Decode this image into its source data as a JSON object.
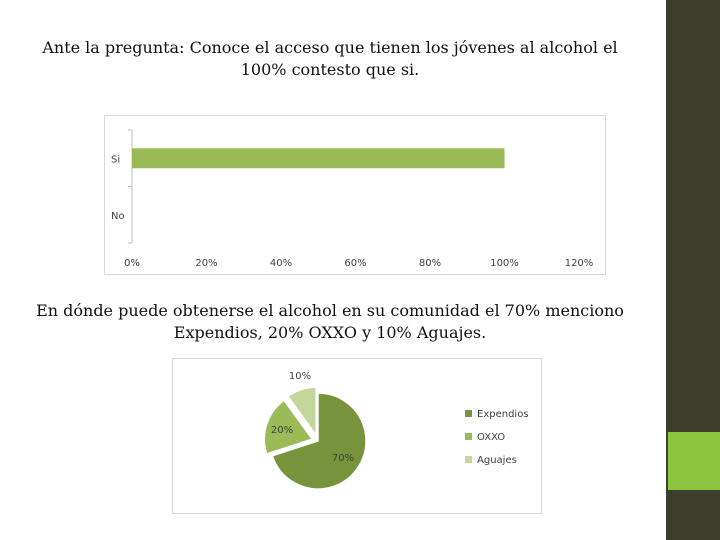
{
  "slide": {
    "heading1": "Ante la pregunta: Conoce el acceso que tienen los jóvenes al alcohol el 100% contesto que si.",
    "heading2": "En dónde puede obtenerse el alcohol en su comunidad el 70% menciono Expendios, 20% OXXO y 10% Aguajes.",
    "colors": {
      "sidebar": "#3d3d2c",
      "accent": "#8cc63f"
    }
  },
  "chart_data": [
    {
      "type": "bar",
      "orientation": "horizontal",
      "categories": [
        "Si",
        "No"
      ],
      "values": [
        100,
        0
      ],
      "xlim": [
        0,
        120
      ],
      "xticks": [
        "0%",
        "20%",
        "40%",
        "60%",
        "80%",
        "100%",
        "120%"
      ],
      "color": "#9bbb59",
      "grid": false,
      "legend": false
    },
    {
      "type": "pie",
      "labels": [
        "Expendios",
        "OXXO",
        "Aguajes"
      ],
      "values": [
        70,
        20,
        10
      ],
      "data_labels": [
        "70%",
        "20%",
        "10%"
      ],
      "colors": [
        "#77933c",
        "#9bbb59",
        "#c3d69b"
      ],
      "legend": "right"
    }
  ]
}
